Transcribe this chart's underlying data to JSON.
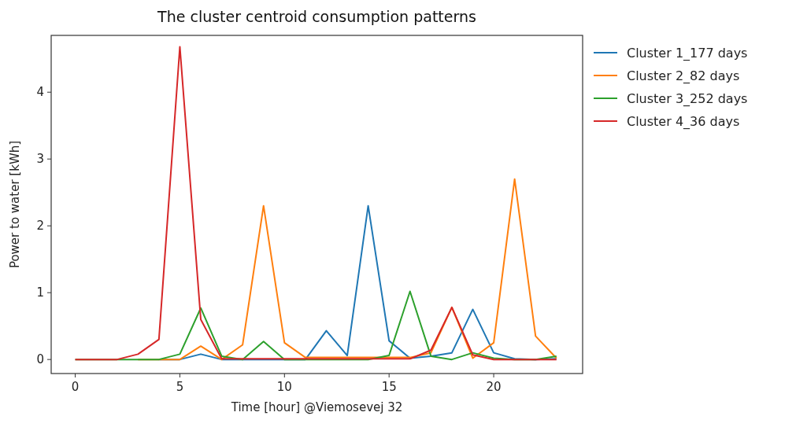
{
  "chart_data": {
    "type": "line",
    "title": "The cluster centroid consumption patterns",
    "xlabel": "Time [hour]  @Viemosevej 32",
    "ylabel": "Power to water [kWh]",
    "x": [
      0,
      1,
      2,
      3,
      4,
      5,
      6,
      7,
      8,
      9,
      10,
      11,
      12,
      13,
      14,
      15,
      16,
      17,
      18,
      19,
      20,
      21,
      22,
      23
    ],
    "series": [
      {
        "name": "Cluster 1_177 days",
        "color": "#1f77b4",
        "values": [
          null,
          null,
          null,
          null,
          0,
          0,
          0.08,
          0,
          0,
          0,
          0,
          0,
          0.43,
          0.06,
          2.3,
          0.28,
          0.02,
          0.05,
          0.1,
          0.75,
          0.1,
          0.01,
          0,
          0.01
        ]
      },
      {
        "name": "Cluster 2_82 days",
        "color": "#ff7f0e",
        "values": [
          null,
          null,
          null,
          0,
          0,
          0,
          0.2,
          0,
          0.22,
          2.3,
          0.25,
          0.03,
          0.03,
          0.03,
          0.03,
          0.03,
          0.03,
          0.1,
          0.78,
          0.02,
          0.25,
          2.7,
          0.35,
          0.02
        ]
      },
      {
        "name": "Cluster 3_252 days",
        "color": "#2ca02c",
        "values": [
          0,
          0,
          0,
          0,
          0,
          0.08,
          0.77,
          0.05,
          0,
          0.27,
          0,
          0,
          0,
          0,
          0,
          0.06,
          1.02,
          0.05,
          0,
          0.1,
          0.02,
          0,
          0,
          0.05
        ]
      },
      {
        "name": "Cluster 4_36 days",
        "color": "#d62728",
        "values": [
          0,
          0,
          0,
          0.08,
          0.3,
          4.68,
          0.6,
          0.01,
          0.01,
          0.01,
          0.01,
          0.01,
          0.01,
          0.01,
          0.01,
          0.01,
          0.01,
          0.14,
          0.78,
          0.07,
          0,
          0,
          0,
          0
        ]
      }
    ],
    "xlim": [
      -1.15,
      24.25
    ],
    "ylim": [
      -0.21,
      4.85
    ],
    "xticks": [
      0,
      5,
      10,
      15,
      20
    ],
    "yticks": [
      0,
      1,
      2,
      3,
      4
    ],
    "grid": false,
    "legend": "top right",
    "marker": "none",
    "line_style": "solid"
  }
}
